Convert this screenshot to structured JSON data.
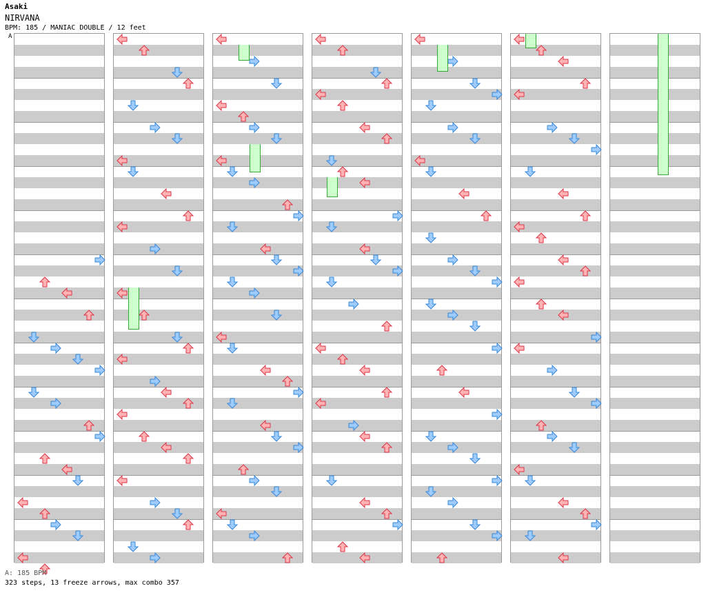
{
  "artist": "Asaki",
  "title": "NIRVANA",
  "meta": "BPM: 185 / MANIAC DOUBLE / 12 feet",
  "bpm_marker": "A",
  "footer": {
    "bpm": "A: 185 BPM",
    "stats": "323 steps, 13 freeze arrows, max combo 357"
  },
  "colors": {
    "red": "#ffb3b3",
    "red_border": "#dd3344",
    "blue": "#9fcbff",
    "blue_border": "#3388dd",
    "freeze": "#ccffcc"
  },
  "chart": {
    "columns": 7,
    "measures_per_column": 12,
    "rows_per_measure": 4,
    "arrow_names": [
      "left-arrow",
      "down-arrow",
      "up-arrow",
      "right-arrow"
    ],
    "notes": [
      [
        [
          0,
          5,
          0
        ],
        [
          0,
          5,
          2
        ],
        [
          0,
          5,
          3
        ],
        [
          0,
          6,
          1
        ],
        [
          0,
          6,
          3
        ],
        [
          0,
          6,
          4
        ],
        [
          0,
          7,
          0
        ],
        [
          0,
          7,
          1
        ],
        [
          0,
          7,
          2
        ],
        [
          0,
          8,
          0
        ],
        [
          0,
          8,
          1
        ],
        [
          0,
          8,
          3
        ],
        [
          0,
          9,
          0
        ],
        [
          0,
          9,
          2
        ],
        [
          0,
          9,
          3
        ],
        [
          0,
          10,
          0
        ],
        [
          0,
          10,
          2
        ],
        [
          0,
          10,
          3
        ],
        [
          0,
          11,
          0
        ],
        [
          0,
          11,
          1
        ],
        [
          0,
          11,
          3
        ],
        [
          0,
          11,
          4
        ]
      ],
      [
        [
          1,
          0,
          0
        ],
        [
          1,
          0,
          1
        ],
        [
          1,
          0,
          3
        ],
        [
          1,
          1,
          0
        ],
        [
          1,
          1,
          2
        ],
        [
          1,
          2,
          0
        ],
        [
          1,
          2,
          1
        ],
        [
          1,
          2,
          3
        ],
        [
          1,
          3,
          0
        ],
        [
          1,
          3,
          2
        ],
        [
          1,
          4,
          0
        ],
        [
          1,
          4,
          1
        ],
        [
          1,
          4,
          3
        ],
        [
          1,
          5,
          1
        ],
        [
          1,
          5,
          3
        ],
        [
          1,
          6,
          1
        ],
        [
          1,
          6,
          3
        ],
        [
          1,
          7,
          0
        ],
        [
          1,
          7,
          1
        ],
        [
          1,
          7,
          3
        ],
        [
          1,
          8,
          0
        ],
        [
          1,
          8,
          1
        ],
        [
          1,
          8,
          2
        ],
        [
          1,
          9,
          0
        ],
        [
          1,
          9,
          1
        ],
        [
          1,
          9,
          2
        ],
        [
          1,
          10,
          0
        ],
        [
          1,
          10,
          2
        ],
        [
          1,
          10,
          3
        ],
        [
          1,
          11,
          0
        ],
        [
          1,
          11,
          2
        ],
        [
          1,
          11,
          3
        ]
      ],
      [
        [
          2,
          0,
          0
        ],
        [
          2,
          0,
          2
        ],
        [
          2,
          1,
          0
        ],
        [
          2,
          1,
          2
        ],
        [
          2,
          1,
          3
        ],
        [
          2,
          2,
          0
        ],
        [
          2,
          2,
          1
        ],
        [
          2,
          2,
          3
        ],
        [
          2,
          3,
          0
        ],
        [
          2,
          3,
          1
        ],
        [
          2,
          3,
          3
        ],
        [
          2,
          4,
          0
        ],
        [
          2,
          4,
          1
        ],
        [
          2,
          4,
          3
        ],
        [
          2,
          5,
          0
        ],
        [
          2,
          5,
          1
        ],
        [
          2,
          5,
          2
        ],
        [
          2,
          5,
          3
        ],
        [
          2,
          6,
          1
        ],
        [
          2,
          6,
          3
        ],
        [
          2,
          7,
          0
        ],
        [
          2,
          7,
          2
        ],
        [
          2,
          7,
          3
        ],
        [
          2,
          8,
          0
        ],
        [
          2,
          8,
          1
        ],
        [
          2,
          8,
          3
        ],
        [
          2,
          9,
          0
        ],
        [
          2,
          9,
          1
        ],
        [
          2,
          9,
          3
        ],
        [
          2,
          10,
          0
        ],
        [
          2,
          10,
          1
        ],
        [
          2,
          10,
          3
        ],
        [
          2,
          11,
          0
        ],
        [
          2,
          11,
          1
        ],
        [
          2,
          11,
          3
        ]
      ],
      [
        [
          3,
          0,
          0
        ],
        [
          3,
          0,
          1
        ],
        [
          3,
          0,
          3
        ],
        [
          3,
          1,
          0
        ],
        [
          3,
          1,
          1
        ],
        [
          3,
          1,
          2
        ],
        [
          3,
          2,
          0
        ],
        [
          3,
          2,
          1
        ],
        [
          3,
          2,
          3
        ],
        [
          3,
          3,
          0
        ],
        [
          3,
          3,
          1
        ],
        [
          3,
          4,
          0
        ],
        [
          3,
          4,
          1
        ],
        [
          3,
          4,
          3
        ],
        [
          3,
          5,
          0
        ],
        [
          3,
          5,
          1
        ],
        [
          3,
          5,
          2
        ],
        [
          3,
          6,
          0
        ],
        [
          3,
          6,
          2
        ],
        [
          3,
          7,
          0
        ],
        [
          3,
          7,
          1
        ],
        [
          3,
          7,
          2
        ],
        [
          3,
          8,
          0
        ],
        [
          3,
          8,
          1
        ],
        [
          3,
          8,
          3
        ],
        [
          3,
          9,
          0
        ],
        [
          3,
          9,
          1
        ],
        [
          3,
          10,
          0
        ],
        [
          3,
          10,
          2
        ],
        [
          3,
          10,
          3
        ],
        [
          3,
          11,
          0
        ],
        [
          3,
          11,
          2
        ],
        [
          3,
          11,
          3
        ]
      ],
      [
        [
          4,
          0,
          0
        ],
        [
          4,
          0,
          2
        ],
        [
          4,
          1,
          0
        ],
        [
          4,
          1,
          1
        ],
        [
          4,
          1,
          2
        ],
        [
          4,
          2,
          0
        ],
        [
          4,
          2,
          1
        ],
        [
          4,
          2,
          3
        ],
        [
          4,
          3,
          0
        ],
        [
          4,
          3,
          2
        ],
        [
          4,
          4,
          0
        ],
        [
          4,
          4,
          2
        ],
        [
          4,
          5,
          0
        ],
        [
          4,
          5,
          1
        ],
        [
          4,
          5,
          2
        ],
        [
          4,
          6,
          0
        ],
        [
          4,
          6,
          1
        ],
        [
          4,
          6,
          2
        ],
        [
          4,
          7,
          0
        ],
        [
          4,
          7,
          2
        ],
        [
          4,
          8,
          0
        ],
        [
          4,
          8,
          2
        ],
        [
          4,
          9,
          0
        ],
        [
          4,
          9,
          1
        ],
        [
          4,
          9,
          2
        ],
        [
          4,
          10,
          0
        ],
        [
          4,
          10,
          1
        ],
        [
          4,
          10,
          2
        ],
        [
          4,
          11,
          0
        ],
        [
          4,
          11,
          1
        ],
        [
          4,
          11,
          3
        ]
      ],
      [
        [
          5,
          0,
          0
        ],
        [
          5,
          0,
          1
        ],
        [
          5,
          0,
          2
        ],
        [
          5,
          1,
          0
        ],
        [
          5,
          1,
          1
        ],
        [
          5,
          2,
          0
        ],
        [
          5,
          2,
          1
        ],
        [
          5,
          2,
          2
        ],
        [
          5,
          3,
          0
        ],
        [
          5,
          3,
          2
        ],
        [
          5,
          4,
          0
        ],
        [
          5,
          4,
          1
        ],
        [
          5,
          4,
          2
        ],
        [
          5,
          5,
          0
        ],
        [
          5,
          5,
          1
        ],
        [
          5,
          5,
          2
        ],
        [
          5,
          6,
          0
        ],
        [
          5,
          6,
          1
        ],
        [
          5,
          6,
          3
        ],
        [
          5,
          7,
          0
        ],
        [
          5,
          7,
          2
        ],
        [
          5,
          8,
          0
        ],
        [
          5,
          8,
          1
        ],
        [
          5,
          8,
          3
        ],
        [
          5,
          9,
          0
        ],
        [
          5,
          9,
          1
        ],
        [
          5,
          9,
          3
        ],
        [
          5,
          10,
          0
        ],
        [
          5,
          10,
          2
        ],
        [
          5,
          10,
          3
        ],
        [
          5,
          11,
          0
        ],
        [
          5,
          11,
          1
        ],
        [
          5,
          11,
          3
        ]
      ]
    ]
  }
}
